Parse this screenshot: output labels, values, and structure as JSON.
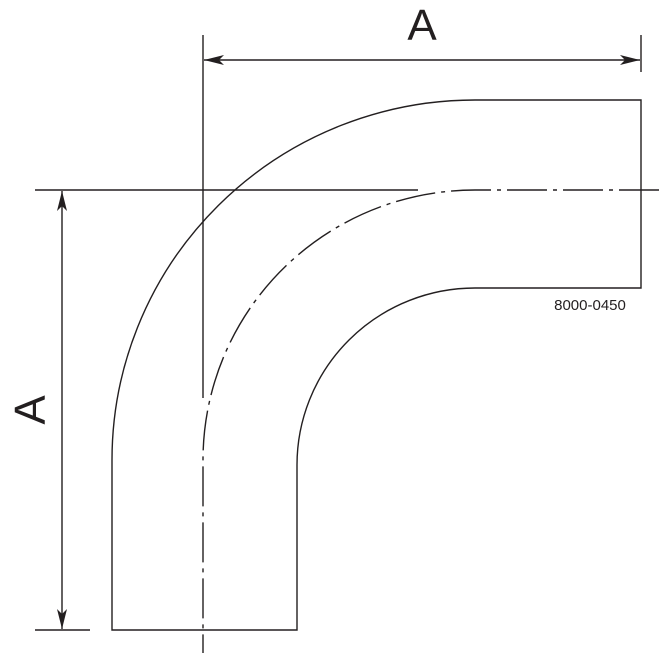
{
  "drawing": {
    "dimension_top_label": "A",
    "dimension_left_label": "A",
    "part_number": "8000-0450",
    "line_color": "#231f20"
  }
}
